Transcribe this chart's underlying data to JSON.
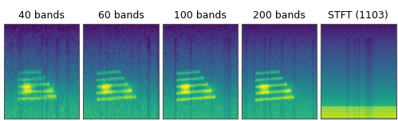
{
  "titles": [
    "40 bands",
    "60 bands",
    "100 bands",
    "200 bands",
    "STFT (1103)"
  ],
  "n_panels": 5,
  "background_color": "#ffffff",
  "title_fontsize": 9,
  "colormap": "viridis",
  "figsize": [
    4.99,
    1.52
  ],
  "dpi": 100,
  "panel_border_color": "#555555",
  "seed": 42,
  "n_time": 100,
  "n_freq_list": [
    40,
    60,
    100,
    200,
    1103
  ]
}
